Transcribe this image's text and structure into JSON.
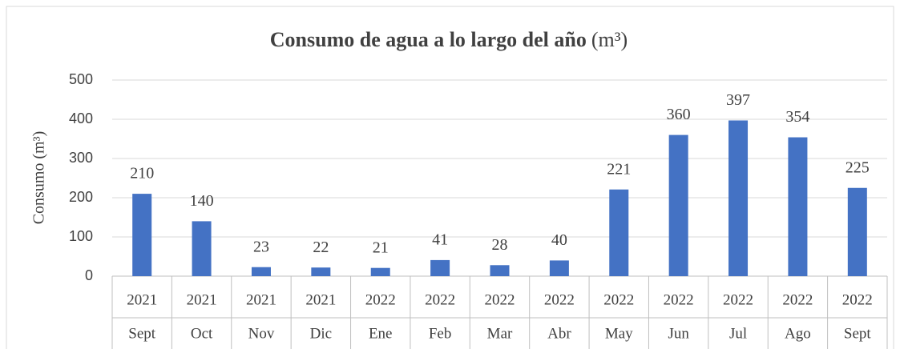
{
  "chart_data": {
    "type": "bar",
    "title": "Consumo de agua a lo largo del año",
    "title_unit": "(m³)",
    "y_label": "Consumo (m³)",
    "categories": [
      "Sept",
      "Oct",
      "Nov",
      "Dic",
      "Ene",
      "Feb",
      "Mar",
      "Abr",
      "May",
      "Jun",
      "Jul",
      "Ago",
      "Sept"
    ],
    "years": [
      "2021",
      "2021",
      "2021",
      "2021",
      "2022",
      "2022",
      "2022",
      "2022",
      "2022",
      "2022",
      "2022",
      "2022",
      "2022"
    ],
    "values": [
      210,
      140,
      23,
      22,
      21,
      41,
      28,
      40,
      221,
      360,
      397,
      354,
      225
    ],
    "color": "#4472c4",
    "ylim": [
      0,
      500
    ],
    "yticks": [
      0,
      100,
      200,
      300,
      400,
      500
    ],
    "grid": true
  }
}
